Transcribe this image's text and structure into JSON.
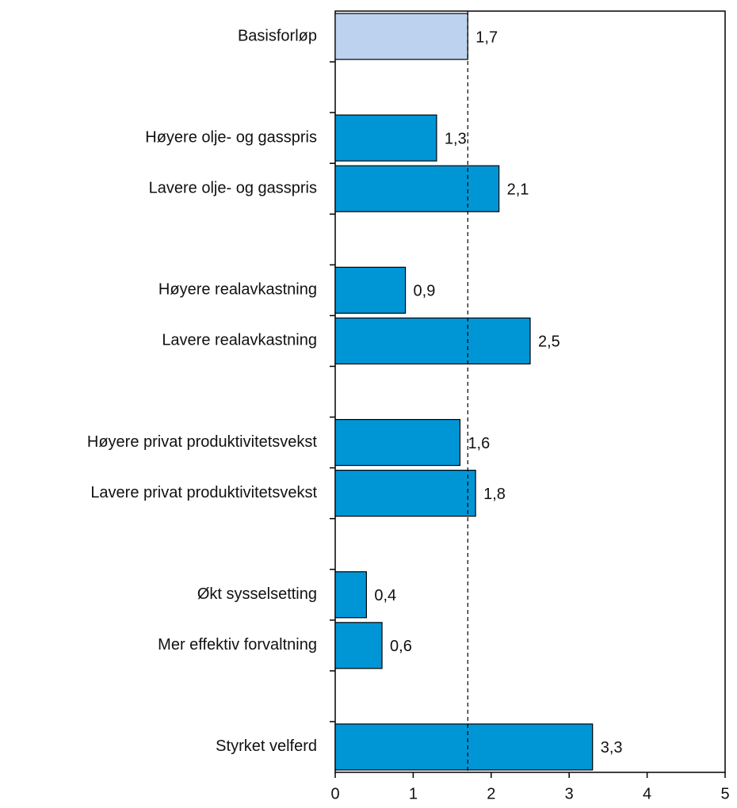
{
  "chart_data": {
    "type": "barh",
    "categories": [
      "Basisforløp",
      null,
      "Høyere olje- og gasspris",
      "Lavere olje- og gasspris",
      null,
      "Høyere realavkastning",
      "Lavere realavkastning",
      null,
      "Høyere privat produktivitetsvekst",
      "Lavere privat produktivitetsvekst",
      null,
      "Økt sysselsetting",
      "Mer effektiv forvaltning",
      null,
      "Styrket velferd"
    ],
    "values": [
      1.7,
      null,
      1.3,
      2.1,
      null,
      0.9,
      2.5,
      null,
      1.6,
      1.8,
      null,
      0.4,
      0.6,
      null,
      3.3
    ],
    "value_labels": [
      "1,7",
      null,
      "1,3",
      "2,1",
      null,
      "0,9",
      "2,5",
      null,
      "1,6",
      "1,8",
      null,
      "0,4",
      "0,6",
      null,
      "3,3"
    ],
    "colors": [
      "#bdd2ee",
      null,
      "#0096d6",
      "#0096d6",
      null,
      "#0096d6",
      "#0096d6",
      null,
      "#0096d6",
      "#0096d6",
      null,
      "#0096d6",
      "#0096d6",
      null,
      "#0096d6"
    ],
    "reference_value": 1.7,
    "xlim": [
      0,
      5
    ],
    "xticks": [
      0,
      1,
      2,
      3,
      4,
      5
    ]
  }
}
